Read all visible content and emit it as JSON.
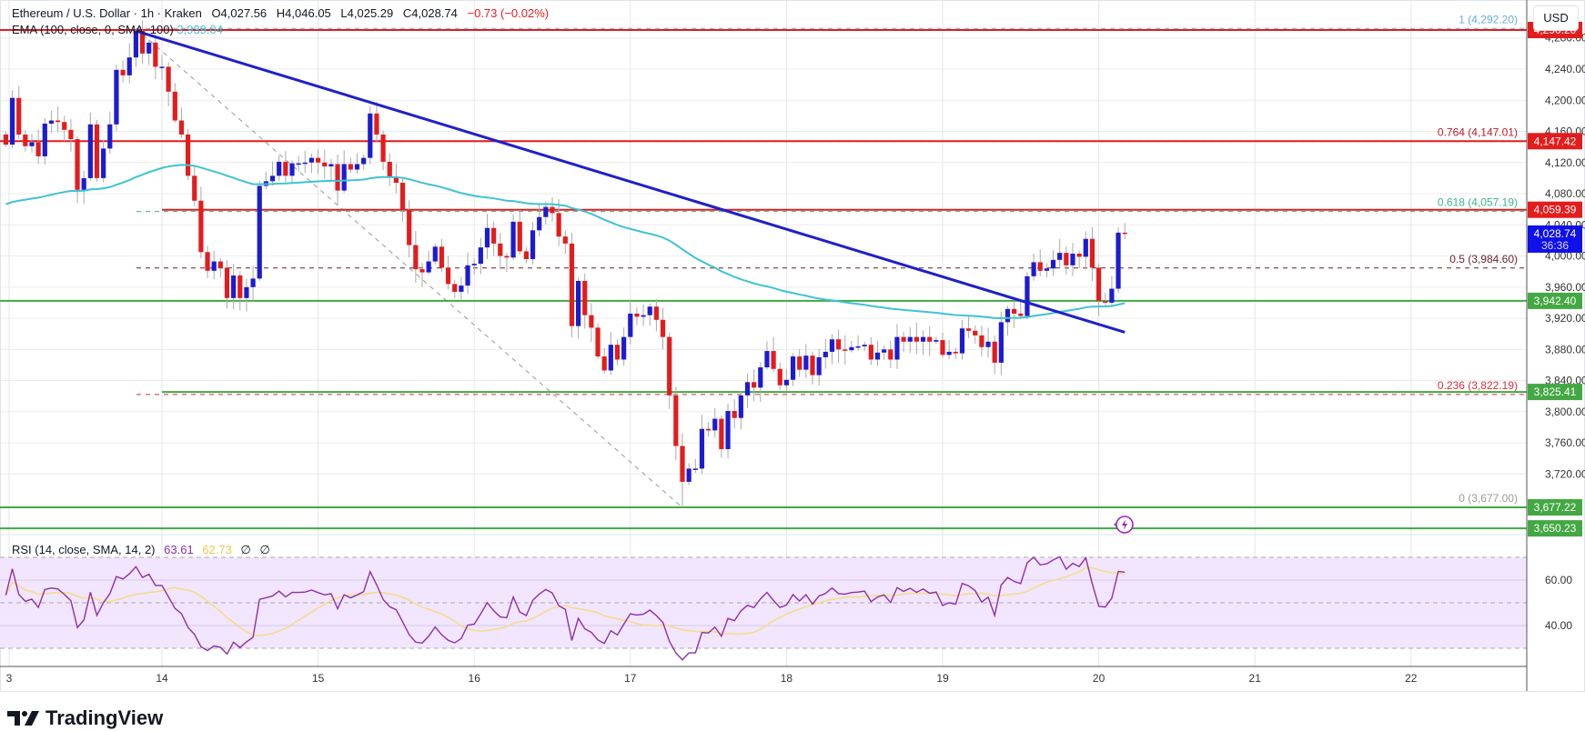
{
  "header": {
    "symbol": "Ethereum / U.S. Dollar · 1h · Kraken",
    "open": "O4,027.56",
    "high": "H4,046.05",
    "low": "L4,025.29",
    "close": "C4,028.74",
    "change": "−0.73 (−0.02%)"
  },
  "ema_legend": {
    "label": "EMA (100, close, 0, SMA, 100)",
    "value": "3,939.04"
  },
  "rsi_legend": {
    "label": "RSI (14, close, SMA, 14, 2)",
    "rsi_value": "63.61",
    "sma_value": "62.73",
    "extra1": "∅",
    "extra2": "∅"
  },
  "currency_button": "USD",
  "brand": "TradingView",
  "colors": {
    "up": "#1c1ccf",
    "down": "#e31c1c",
    "ema": "#3fc3d3",
    "trendline": "#1f1fcc",
    "resistance": "#e31c1c",
    "support": "#43a843",
    "rsi": "#8e2fa8",
    "rsi_sma": "#f5dc8c",
    "rsi_band": "#f1e6fd",
    "last_price": "#1010e8"
  },
  "chart_data": {
    "type": "candlestick",
    "title": "Ethereum / U.S. Dollar · 1h · Kraken",
    "x_tick_labels": [
      "3",
      "14",
      "15",
      "16",
      "17",
      "18",
      "19",
      "20",
      "21",
      "22"
    ],
    "y_tick_labels": [
      "4,280.00",
      "4,240.00",
      "4,200.00",
      "4,160.00",
      "4,120.00",
      "4,080.00",
      "4,040.00",
      "4,000.00",
      "3,960.00",
      "3,920.00",
      "3,880.00",
      "3,840.00",
      "3,800.00",
      "3,760.00",
      "3,720.00"
    ],
    "y_ticks": [
      4280,
      4240,
      4200,
      4160,
      4120,
      4080,
      4040,
      4000,
      3960,
      3920,
      3880,
      3840,
      3800,
      3760,
      3720
    ],
    "ylim": [
      3638,
      4302
    ],
    "candle_interval": "1h",
    "first_open": 4156,
    "closes": [
      4143,
      4203,
      4156,
      4141,
      4146,
      4128,
      4170,
      4174,
      4172,
      4162,
      4150,
      4085,
      4100,
      4169,
      4100,
      4138,
      4169,
      4239,
      4232,
      4255,
      4289,
      4260,
      4274,
      4243,
      4243,
      4211,
      4174,
      4156,
      4103,
      4071,
      4005,
      3981,
      3993,
      3985,
      3946,
      3975,
      3946,
      3960,
      3971,
      4090,
      4096,
      4103,
      4121,
      4103,
      4119,
      4119,
      4120,
      4126,
      4120,
      4115,
      4118,
      4084,
      4118,
      4111,
      4118,
      4126,
      4183,
      4156,
      4121,
      4102,
      4094,
      4059,
      4014,
      3983,
      3979,
      3993,
      4012,
      3985,
      3964,
      3954,
      3962,
      3988,
      3990,
      4011,
      4036,
      4016,
      4000,
      3998,
      4044,
      4006,
      3996,
      4033,
      4050,
      4063,
      4055,
      4025,
      4016,
      3910,
      3968,
      3924,
      3908,
      3871,
      3853,
      3886,
      3867,
      3896,
      3926,
      3922,
      3924,
      3935,
      3918,
      3896,
      3821,
      3756,
      3710,
      3727,
      3727,
      3778,
      3776,
      3791,
      3752,
      3801,
      3792,
      3821,
      3838,
      3831,
      3857,
      3878,
      3855,
      3834,
      3841,
      3871,
      3854,
      3872,
      3847,
      3870,
      3877,
      3893,
      3880,
      3879,
      3883,
      3884,
      3886,
      3867,
      3876,
      3880,
      3867,
      3896,
      3890,
      3896,
      3890,
      3896,
      3890,
      3892,
      3873,
      3877,
      3875,
      3907,
      3904,
      3898,
      3883,
      3890,
      3863,
      3915,
      3932,
      3926,
      3923,
      3974,
      3992,
      3981,
      3984,
      3995,
      4004,
      3988,
      4003,
      3999,
      4022,
      3985,
      3942,
      3940,
      3958,
      4030,
      4028.74
    ],
    "extreme_overrides": {
      "20": {
        "high": 4292.2
      },
      "104": {
        "low": 3677.0
      }
    },
    "ema": {
      "period": 100,
      "seed": 4065
    },
    "trendline": {
      "from": {
        "index": 20,
        "price": 4289
      },
      "to": {
        "index": 172,
        "price": 3902
      }
    },
    "fibonacci": {
      "from": {
        "index": 20,
        "price": 4292.2
      },
      "to": {
        "index": 104,
        "price": 3677.0
      },
      "levels": [
        {
          "ratio": "1",
          "price": 4292.2,
          "label": "1 (4,292.20)",
          "color": "#64aee0"
        },
        {
          "ratio": "0.764",
          "price": 4147.01,
          "label": "0.764 (4,147.01)",
          "color": "#b5202e"
        },
        {
          "ratio": "0.618",
          "price": 4057.19,
          "label": "0.618 (4,057.19)",
          "color": "#3ab58a"
        },
        {
          "ratio": "0.5",
          "price": 3984.6,
          "label": "0.5 (3,984.60)",
          "color": "#6d1f26"
        },
        {
          "ratio": "0.236",
          "price": 3822.19,
          "label": "0.236 (3,822.19)",
          "color": "#d92f3a"
        },
        {
          "ratio": "0",
          "price": 3677.0,
          "label": "0 (3,677.00)",
          "color": "#9a9a9a"
        }
      ]
    },
    "horizontal_lines": [
      {
        "price": 4290.2,
        "label": "4,290.20",
        "kind": "resistance",
        "start_day": "13"
      },
      {
        "price": 4147.42,
        "label": "4,147.42",
        "kind": "resistance",
        "start_day": "13"
      },
      {
        "price": 4059.39,
        "label": "4,059.39",
        "kind": "resistance",
        "start_day": "14"
      },
      {
        "price": 3942.4,
        "label": "3,942.40",
        "kind": "support",
        "start_day": "13"
      },
      {
        "price": 3825.41,
        "label": "3,825.41",
        "kind": "support",
        "start_day": "14"
      },
      {
        "price": 3677.22,
        "label": "3,677.22",
        "kind": "support",
        "start_day": "13"
      },
      {
        "price": 3650.23,
        "label": "3,650.23",
        "kind": "support",
        "start_day": "13"
      }
    ],
    "last_price": {
      "price": 4028.74,
      "label": "4,028.74",
      "countdown": "36:36"
    },
    "rsi": {
      "period": 14,
      "sma_period": 14,
      "bands": [
        70,
        50,
        30
      ],
      "y_ticks": [
        60,
        40
      ],
      "y_tick_labels": [
        "60.00",
        "40.00"
      ]
    }
  }
}
